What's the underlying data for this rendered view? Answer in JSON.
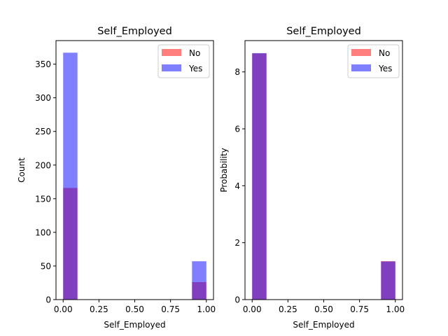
{
  "chart_data": [
    {
      "type": "histogram",
      "title": "Self_Employed",
      "xlabel": "Self_Employed",
      "ylabel": "Count",
      "xlim": [
        -0.05,
        1.05
      ],
      "ylim": [
        0,
        385
      ],
      "xticks": [
        0.0,
        0.25,
        0.5,
        0.75,
        1.0
      ],
      "xtick_labels": [
        "0.00",
        "0.25",
        "0.50",
        "0.75",
        "1.00"
      ],
      "yticks": [
        0,
        50,
        100,
        150,
        200,
        250,
        300,
        350
      ],
      "ytick_labels": [
        "0",
        "50",
        "100",
        "150",
        "200",
        "250",
        "300",
        "350"
      ],
      "bins": [
        [
          0.0,
          0.1
        ],
        [
          0.9,
          1.0
        ]
      ],
      "series": [
        {
          "name": "No",
          "color": "#ff0000",
          "alpha": 0.5,
          "values": [
            166,
            26
          ]
        },
        {
          "name": "Yes",
          "color": "#0000ff",
          "alpha": 0.5,
          "values": [
            367,
            57
          ]
        }
      ],
      "legend": {
        "position": "top-right",
        "entries": [
          "No",
          "Yes"
        ]
      },
      "grid": false
    },
    {
      "type": "histogram",
      "title": "Self_Employed",
      "xlabel": "Self_Employed",
      "ylabel": "Probability",
      "xlim": [
        -0.05,
        1.05
      ],
      "ylim": [
        0,
        9.1
      ],
      "xticks": [
        0.0,
        0.25,
        0.5,
        0.75,
        1.0
      ],
      "xtick_labels": [
        "0.00",
        "0.25",
        "0.50",
        "0.75",
        "1.00"
      ],
      "yticks": [
        0,
        2,
        4,
        6,
        8
      ],
      "ytick_labels": [
        "0",
        "2",
        "4",
        "6",
        "8"
      ],
      "bins": [
        [
          0.0,
          0.1
        ],
        [
          0.9,
          1.0
        ]
      ],
      "series": [
        {
          "name": "No",
          "color": "#ff0000",
          "alpha": 0.5,
          "values": [
            8.65,
            1.35
          ]
        },
        {
          "name": "Yes",
          "color": "#0000ff",
          "alpha": 0.5,
          "values": [
            8.66,
            1.34
          ]
        }
      ],
      "legend": {
        "position": "top-right",
        "entries": [
          "No",
          "Yes"
        ]
      },
      "grid": false
    }
  ]
}
